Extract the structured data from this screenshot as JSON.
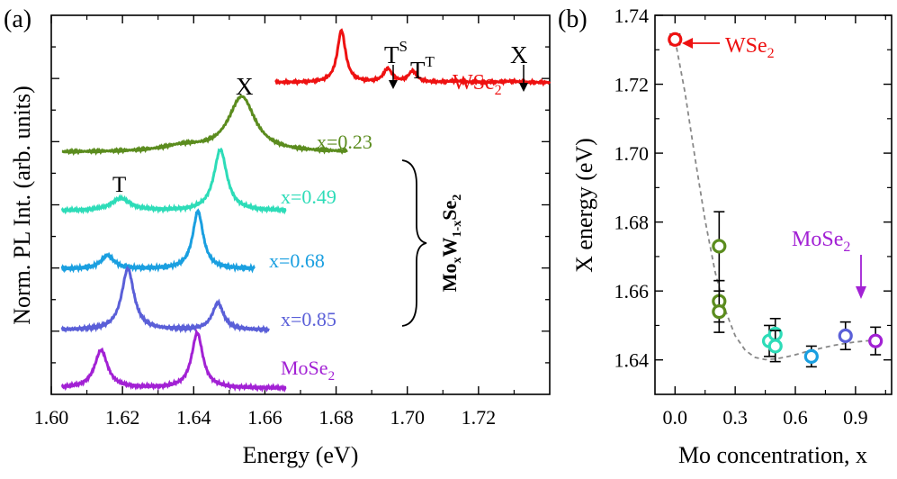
{
  "panels": {
    "a_label": "(a)",
    "b_label": "(b)"
  },
  "chart_data": [
    {
      "type": "line",
      "panel": "(a)",
      "xlabel": "Energy (eV)",
      "ylabel": "Norm. PL Int. (arb. units)",
      "xlim": [
        1.6,
        1.74
      ],
      "xticks": [
        "1.60",
        "1.62",
        "1.64",
        "1.66",
        "1.68",
        "1.70",
        "1.72"
      ],
      "xtick_values": [
        1.6,
        1.62,
        1.64,
        1.66,
        1.68,
        1.7,
        1.72
      ],
      "yticks_labeled": false,
      "series": [
        {
          "name": "WSe2",
          "color": "#ee1111",
          "offset": 5.1,
          "x_range": [
            1.663,
            1.74
          ],
          "base": 0.0,
          "peaks": [
            {
              "center": 1.6815,
              "amp": 0.85,
              "width": 0.0014
            },
            {
              "center": 1.6945,
              "amp": 0.22,
              "width": 0.0014
            },
            {
              "center": 1.7015,
              "amp": 0.18,
              "width": 0.0014
            },
            {
              "center": 1.7135,
              "amp": 0.025,
              "width": 0.002
            },
            {
              "center": 1.729,
              "amp": 0.02,
              "width": 0.003
            }
          ]
        },
        {
          "name": "x=0.23",
          "color": "#5b8c1e",
          "offset": 3.9,
          "x_range": [
            1.603,
            1.683
          ],
          "base": 0.06,
          "peaks": [
            {
              "center": 1.6535,
              "amp": 0.9,
              "width": 0.0045
            },
            {
              "center": 1.637,
              "amp": 0.09,
              "width": 0.007
            }
          ]
        },
        {
          "name": "x=0.49",
          "color": "#2ddcb8",
          "offset": 3.0,
          "x_range": [
            1.603,
            1.666
          ],
          "base": 0.0,
          "peaks": [
            {
              "center": 1.6475,
              "amp": 1.0,
              "width": 0.0022
            },
            {
              "center": 1.6195,
              "amp": 0.2,
              "width": 0.0033
            }
          ]
        },
        {
          "name": "x=0.68",
          "color": "#1a9fe0",
          "offset": 2.05,
          "x_range": [
            1.603,
            1.657
          ],
          "base": 0.0,
          "peaks": [
            {
              "center": 1.6412,
              "amp": 0.94,
              "width": 0.0018
            },
            {
              "center": 1.6158,
              "amp": 0.22,
              "width": 0.0022
            }
          ]
        },
        {
          "name": "x=0.85",
          "color": "#5a5fd8",
          "offset": 1.05,
          "x_range": [
            1.603,
            1.661
          ],
          "base": 0.0,
          "peaks": [
            {
              "center": 1.6215,
              "amp": 1.0,
              "width": 0.0021
            },
            {
              "center": 1.6468,
              "amp": 0.44,
              "width": 0.0019
            }
          ]
        },
        {
          "name": "MoSe2",
          "color": "#a221d4",
          "offset": 0.1,
          "x_range": [
            1.603,
            1.666
          ],
          "base": 0.0,
          "peaks": [
            {
              "center": 1.614,
              "amp": 0.62,
              "width": 0.0022
            },
            {
              "center": 1.641,
              "amp": 0.9,
              "width": 0.0019
            }
          ]
        }
      ],
      "labels": {
        "WSe2": "WSe",
        "WSe2_sub": "2",
        "x023": "x=0.23",
        "x049": "x=0.49",
        "x068": "x=0.68",
        "x085": "x=0.85",
        "MoSe2": "MoSe",
        "MoSe2_sub": "2",
        "X_main": "X",
        "T_main": "T",
        "TS": "T",
        "TS_sup": "S",
        "TT": "T",
        "TT_sup": "T",
        "X_wse2": "X",
        "composition": "Mo",
        "composition_sub1": "x",
        "composition_mid": "W",
        "composition_sub2": "1-x",
        "composition_end": "Se",
        "composition_sub3": "2"
      }
    },
    {
      "type": "scatter",
      "panel": "(b)",
      "xlabel": "Mo concentration, x",
      "ylabel": "X energy (eV)",
      "xlim": [
        -0.1,
        1.08
      ],
      "ylim": [
        1.63,
        1.74
      ],
      "xticks": [
        "0.0",
        "0.3",
        "0.6",
        "0.9"
      ],
      "xtick_values": [
        0.0,
        0.3,
        0.6,
        0.9
      ],
      "yticks": [
        "1.64",
        "1.66",
        "1.68",
        "1.70",
        "1.72",
        "1.74"
      ],
      "ytick_values": [
        1.64,
        1.66,
        1.68,
        1.7,
        1.72,
        1.74
      ],
      "points": [
        {
          "x": 0.0,
          "y": 1.733,
          "err": 0.0015,
          "color": "#ee1111"
        },
        {
          "x": 0.22,
          "y": 1.673,
          "err": 0.01,
          "color": "#5b8c1e"
        },
        {
          "x": 0.22,
          "y": 1.657,
          "err": 0.006,
          "color": "#5b8c1e"
        },
        {
          "x": 0.22,
          "y": 1.654,
          "err": 0.006,
          "color": "#5b8c1e"
        },
        {
          "x": 0.47,
          "y": 1.6455,
          "err": 0.0045,
          "color": "#2ddcb8"
        },
        {
          "x": 0.5,
          "y": 1.6475,
          "err": 0.0045,
          "color": "#2ddcb8"
        },
        {
          "x": 0.5,
          "y": 1.644,
          "err": 0.0045,
          "color": "#2ddcb8"
        },
        {
          "x": 0.68,
          "y": 1.641,
          "err": 0.003,
          "color": "#1a9fe0"
        },
        {
          "x": 0.85,
          "y": 1.647,
          "err": 0.004,
          "color": "#5a5fd8"
        },
        {
          "x": 1.0,
          "y": 1.6455,
          "err": 0.004,
          "color": "#a221d4"
        }
      ],
      "fit_curve": {
        "x": [
          0.0,
          0.05,
          0.1,
          0.15,
          0.2,
          0.25,
          0.3,
          0.35,
          0.4,
          0.45,
          0.5,
          0.55,
          0.6,
          0.65,
          0.7,
          0.75,
          0.8,
          0.85,
          0.9,
          0.95,
          1.0
        ],
        "y": [
          1.733,
          1.7175,
          1.6985,
          1.6805,
          1.6655,
          1.6545,
          1.647,
          1.6428,
          1.6407,
          1.6401,
          1.6403,
          1.6408,
          1.6415,
          1.6423,
          1.643,
          1.6437,
          1.6443,
          1.6448,
          1.6452,
          1.6455,
          1.6457
        ],
        "color": "#888888"
      },
      "annotations": {
        "WSe2": "WSe",
        "WSe2_sub": "2",
        "WSe2_color": "#ee1111",
        "MoSe2": "MoSe",
        "MoSe2_sub": "2",
        "MoSe2_color": "#a221d4"
      }
    }
  ]
}
